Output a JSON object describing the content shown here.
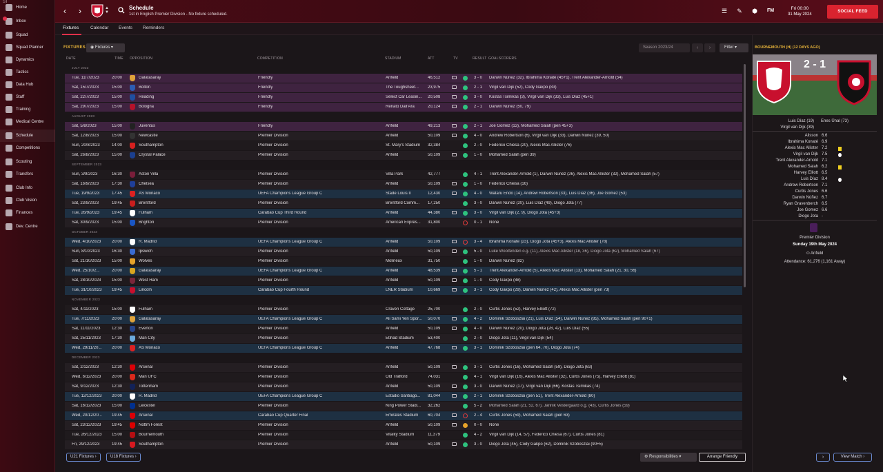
{
  "app": {
    "logo_text": "FM"
  },
  "sidebar": {
    "items": [
      {
        "label": "Home",
        "icon": "home-icon"
      },
      {
        "label": "Inbox",
        "icon": "inbox-icon"
      },
      {
        "label": "Squad",
        "icon": "squad-icon"
      },
      {
        "label": "Squad Planner",
        "icon": "planner-icon"
      },
      {
        "label": "Dynamics",
        "icon": "dynamics-icon"
      },
      {
        "label": "Tactics",
        "icon": "tactics-icon"
      },
      {
        "label": "Data Hub",
        "icon": "datahub-icon"
      },
      {
        "label": "Staff",
        "icon": "staff-icon"
      },
      {
        "label": "Training",
        "icon": "training-icon"
      },
      {
        "label": "Medical Centre",
        "icon": "medical-icon"
      },
      {
        "label": "Schedule",
        "icon": "schedule-icon"
      },
      {
        "label": "Competitions",
        "icon": "trophy-icon"
      },
      {
        "label": "Scouting",
        "icon": "scouting-icon"
      },
      {
        "label": "Transfers",
        "icon": "transfers-icon"
      },
      {
        "label": "Club Info",
        "icon": "clubinfo-icon"
      },
      {
        "label": "Club Vision",
        "icon": "vision-icon"
      },
      {
        "label": "Finances",
        "icon": "finances-icon"
      },
      {
        "label": "Dev. Centre",
        "icon": "devcentre-icon"
      }
    ]
  },
  "header": {
    "title": "Schedule",
    "subtitle": "1st in English Premier Division - No fixture scheduled.",
    "time": "Fri 00:00",
    "date": "31 May 2024",
    "social_feed": "SOCIAL FEED",
    "fm_label": "FM"
  },
  "tabs": [
    "Fixtures",
    "Calendar",
    "Events",
    "Reminders"
  ],
  "fixtures": {
    "label": "FIXTURES",
    "dropdown": "Fixtures",
    "season": "Season 2023/24",
    "filter": "Filter",
    "columns": {
      "date": "DATE",
      "time": "TIME",
      "opposition": "OPPOSITION",
      "competition": "COMPETITION",
      "stadium": "STADIUM",
      "att": "ATT",
      "tv": "TV",
      "result": "RESULT",
      "goalscorers": "GOALSCORERS"
    },
    "sections": [
      "JULY 2023",
      "AUGUST 2023",
      "SEPTEMBER 2023",
      "OCTOBER 2023",
      "NOVEMBER 2023",
      "DECEMBER 2023"
    ],
    "rows": [
      {
        "date": "Tue, 11/7/2023",
        "time": "20:00",
        "opp": "Galatasaray",
        "comp": "Friendly",
        "stadium": "Anfield",
        "att": "46,512",
        "res": "3 - 0",
        "goals": "Darwin Núñez (32), Ibrahima Konaté (45+1), Trent Alexander-Arnold (54)"
      },
      {
        "date": "Sat, 15/7/2023",
        "time": "15:00",
        "opp": "Bolton",
        "comp": "Friendly",
        "stadium": "The Toughsheet...",
        "att": "23,975",
        "res": "2 - 1",
        "goals": "Virgil van Dijk (52), Cody Gakpo (83)"
      },
      {
        "date": "Sat, 22/7/2023",
        "time": "15:00",
        "opp": "Reading",
        "comp": "Friendly",
        "stadium": "Select Car Leasin...",
        "att": "20,508",
        "res": "3 - 0",
        "goals": "Kostas Tsimikas (3), Virgil van Dijk (33), Luis Díaz (45+1)"
      },
      {
        "date": "Sat, 29/7/2023",
        "time": "15:00",
        "opp": "Bologna",
        "comp": "Friendly",
        "stadium": "Renato Dall'Ara",
        "att": "20,124",
        "res": "2 - 1",
        "goals": "Darwin Núñez (50, 79)"
      },
      {
        "date": "Sat, 5/8/2023",
        "time": "15:00",
        "opp": "Juventus",
        "comp": "Friendly",
        "stadium": "Anfield",
        "att": "49,213",
        "res": "2 - 1",
        "goals": "Joe Gomez (13), Mohamed Salah (pen 45+3)"
      },
      {
        "date": "Sat, 12/8/2023",
        "time": "15:00",
        "opp": "Newcastle",
        "comp": "Premier Division",
        "stadium": "Anfield",
        "att": "50,109",
        "res": "4 - 0",
        "goals": "Andrew Robertson (6), Virgil van Dijk (33), Darwin Núñez (39, 50)"
      },
      {
        "date": "Sun, 20/8/2023",
        "time": "14:00",
        "opp": "Southampton",
        "comp": "Premier Division",
        "stadium": "St. Mary's Stadium",
        "att": "32,384",
        "res": "2 - 0",
        "goals": "Federico Chiesa (20), Alexis Mac Allister (76)"
      },
      {
        "date": "Sat, 26/8/2023",
        "time": "15:00",
        "opp": "Crystal Palace",
        "comp": "Premier Division",
        "stadium": "Anfield",
        "att": "50,109",
        "res": "1 - 0",
        "goals": "Mohamed Salah (pen 39)"
      },
      {
        "date": "Sun, 3/9/2023",
        "time": "16:30",
        "opp": "Aston Villa",
        "comp": "Premier Division",
        "stadium": "Villa Park",
        "att": "42,777",
        "res": "4 - 1",
        "goals": "Trent Alexander-Arnold (1), Darwin Núñez (26), Alexis Mac Allister (32), Mohamed Salah (57)"
      },
      {
        "date": "Sat, 16/9/2023",
        "time": "17:30",
        "opp": "Chelsea",
        "comp": "Premier Division",
        "stadium": "Anfield",
        "att": "50,109",
        "res": "1 - 0",
        "goals": "Federico Chiesa (16)"
      },
      {
        "date": "Tue, 19/9/2023",
        "time": "17:45",
        "opp": "AS Monaco",
        "comp": "UEFA Champions League Group C",
        "stadium": "Stade Louis II",
        "att": "12,430",
        "res": "4 - 0",
        "goals": "Wataru Endo (14), Andrew Robertson (33), Luis Díaz (36), Joe Gomez (53)"
      },
      {
        "date": "Sat, 23/9/2023",
        "time": "19:45",
        "opp": "Brentford",
        "comp": "Premier Division",
        "stadium": "Brentford Comm...",
        "att": "17,250",
        "res": "3 - 0",
        "goals": "Darwin Núñez (20), Luis Díaz (49), Diogo Jota (77)"
      },
      {
        "date": "Tue, 26/9/2023",
        "time": "19:45",
        "opp": "Fulham",
        "comp": "Carabao Cup Third Round",
        "stadium": "Anfield",
        "att": "44,380",
        "res": "3 - 0",
        "goals": "Virgil van Dijk (2, 9), Diogo Jota (45+3)"
      },
      {
        "date": "Sat, 30/9/2023",
        "time": "15:00",
        "opp": "Brighton",
        "comp": "Premier Division",
        "stadium": "American Expres...",
        "att": "31,800",
        "res": "0 - 1",
        "goals": "None"
      },
      {
        "date": "Wed, 4/10/2023",
        "time": "20:00",
        "opp": "R. Madrid",
        "comp": "UEFA Champions League Group C",
        "stadium": "Anfield",
        "att": "50,109",
        "res": "3 - 4",
        "goals": "Ibrahima Konaté (23), Diogo Jota (45+3), Alexis Mac Allister (78)"
      },
      {
        "date": "Sun, 8/10/2023",
        "time": "16:30",
        "opp": "Ipswich",
        "comp": "Premier Division",
        "stadium": "Anfield",
        "att": "50,109",
        "res": "5 - 0",
        "goals": "Luke Woolfenden o.g. (11), Alexis Mac Allister (18, 36), Diogo Jota (62), Mohamed Salah (67)"
      },
      {
        "date": "Sat, 21/10/2023",
        "time": "15:00",
        "opp": "Wolves",
        "comp": "Premier Division",
        "stadium": "Molineux",
        "att": "31,750",
        "res": "1 - 0",
        "goals": "Darwin Núñez (82)"
      },
      {
        "date": "Wed, 25/10/2...",
        "time": "20:00",
        "opp": "Galatasaray",
        "comp": "UEFA Champions League Group C",
        "stadium": "Anfield",
        "att": "48,539",
        "res": "5 - 1",
        "goals": "Trent Alexander-Arnold (5), Alexis Mac Allister (13), Mohamed Salah (21, 30, 56)"
      },
      {
        "date": "Sat, 28/10/2023",
        "time": "15:00",
        "opp": "West Ham",
        "comp": "Premier Division",
        "stadium": "Anfield",
        "att": "50,109",
        "res": "1 - 0",
        "goals": "Cody Gakpo (88)"
      },
      {
        "date": "Tue, 31/10/2023",
        "time": "19:45",
        "opp": "Lincoln",
        "comp": "Carabao Cup Fourth Round",
        "stadium": "LNER Stadium",
        "att": "10,669",
        "res": "3 - 1",
        "goals": "Cody Gakpo (29), Darwin Núñez (42), Alexis Mac Allister (pen 73)"
      },
      {
        "date": "Sat, 4/11/2023",
        "time": "15:00",
        "opp": "Fulham",
        "comp": "Premier Division",
        "stadium": "Craven Cottage",
        "att": "25,700",
        "res": "2 - 0",
        "goals": "Curtis Jones (52), Harvey Elliott (72)"
      },
      {
        "date": "Tue, 7/11/2023",
        "time": "20:00",
        "opp": "Galatasaray",
        "comp": "UEFA Champions League Group C",
        "stadium": "Ali Sami Yen Spor...",
        "att": "50,070",
        "res": "4 - 2",
        "goals": "Dominik Szoboszlai (21), Luis Díaz (54), Darwin Núñez (85), Mohamed Salah (pen 90+1)"
      },
      {
        "date": "Sat, 11/11/2023",
        "time": "12:30",
        "opp": "Everton",
        "comp": "Premier Division",
        "stadium": "Anfield",
        "att": "50,109",
        "res": "4 - 0",
        "goals": "Darwin Núñez (20), Diogo Jota (28, 42), Luis Díaz (55)"
      },
      {
        "date": "Sat, 25/11/2023",
        "time": "17:30",
        "opp": "Man City",
        "comp": "Premier Division",
        "stadium": "Etihad Stadium",
        "att": "53,400",
        "res": "2 - 0",
        "goals": "Diogo Jota (11), Virgil van Dijk (54)"
      },
      {
        "date": "Wed, 29/11/20...",
        "time": "20:00",
        "opp": "AS Monaco",
        "comp": "UEFA Champions League Group C",
        "stadium": "Anfield",
        "att": "47,768",
        "res": "3 - 1",
        "goals": "Dominik Szoboszlai (pen 64, 70), Diogo Jota (74)"
      },
      {
        "date": "Sat, 2/12/2023",
        "time": "12:30",
        "opp": "Arsenal",
        "comp": "Premier Division",
        "stadium": "Anfield",
        "att": "50,109",
        "res": "3 - 1",
        "goals": "Curtis Jones (16), Mohamed Salah (59), Diogo Jota (63)"
      },
      {
        "date": "Wed, 6/12/2023",
        "time": "20:00",
        "opp": "Man UFC",
        "comp": "Premier Division",
        "stadium": "Old Trafford",
        "att": "74,031",
        "res": "4 - 1",
        "goals": "Virgil van Dijk (16), Alexis Mac Allister (32), Curtis Jones (75), Harvey Elliott (81)"
      },
      {
        "date": "Sat, 9/12/2023",
        "time": "12:30",
        "opp": "Tottenham",
        "comp": "Premier Division",
        "stadium": "Anfield",
        "att": "50,109",
        "res": "3 - 0",
        "goals": "Darwin Núñez (17), Virgil van Dijk (66), Kostas Tsimikas (74)"
      },
      {
        "date": "Tue, 12/12/2023",
        "time": "20:00",
        "opp": "R. Madrid",
        "comp": "UEFA Champions League Group C",
        "stadium": "Estadio Santiago...",
        "att": "81,044",
        "res": "2 - 1",
        "goals": "Dominik Szoboszlai (pen 51), Trent Alexander-Arnold (80)"
      },
      {
        "date": "Sat, 16/12/2023",
        "time": "15:00",
        "opp": "Leicester",
        "comp": "Premier Division",
        "stadium": "King Power Stadi...",
        "att": "32,262",
        "res": "5 - 2",
        "goals": "Mohamed Salah (21, 52, 67), Jannik Vestergaard o.g. (43), Curtis Jones (59)"
      },
      {
        "date": "Wed, 20/12/20...",
        "time": "19:45",
        "opp": "Arsenal",
        "comp": "Carabao Cup Quarter Final",
        "stadium": "Emirates Stadium",
        "att": "60,704",
        "res": "2 - 4",
        "goals": "Curtis Jones (59), Mohamed Salah (pen 63)"
      },
      {
        "date": "Sat, 23/12/2023",
        "time": "19:45",
        "opp": "Nottm Forest",
        "comp": "Premier Division",
        "stadium": "Anfield",
        "att": "50,109",
        "res": "0 - 0",
        "goals": "None"
      },
      {
        "date": "Tue, 26/12/2023",
        "time": "15:00",
        "opp": "Bournemouth",
        "comp": "Premier Division",
        "stadium": "Vitality Stadium",
        "att": "11,379",
        "res": "4 - 2",
        "goals": "Virgil van Dijk (14, 57), Federico Chiesa (67), Curtis Jones (81)"
      },
      {
        "date": "Fri, 29/12/2023",
        "time": "19:45",
        "opp": "Southampton",
        "comp": "Premier Division",
        "stadium": "Anfield",
        "att": "50,109",
        "res": "3 - 0",
        "goals": "Diogo Jota (45), Cody Gakpo (62), Dominik Szoboszlai (90+5)"
      }
    ],
    "u21": "U21 Fixtures",
    "u18": "U18 Fixtures",
    "responsibilities": "Responsibilities",
    "arrange": "Arrange Friendly"
  },
  "panel": {
    "title": "BOURNEMOUTH (H) (12 DAYS AGO)",
    "score": "2 - 1",
    "scorers_home": [
      "Luis Díaz (19)",
      "Virgil van Dijk (39)"
    ],
    "scorers_away": [
      "Enes Ünal (73)"
    ],
    "ratings": [
      {
        "name": "Alisson",
        "val": "6.6"
      },
      {
        "name": "Ibrahima Konaté",
        "val": "6.9"
      },
      {
        "name": "Alexis Mac Allister",
        "val": "7.2"
      },
      {
        "name": "Virgil van Dijk",
        "val": "7.5"
      },
      {
        "name": "Trent Alexander-Arnold",
        "val": "7.1"
      },
      {
        "name": "Mohamed Salah",
        "val": "6.2"
      },
      {
        "name": "Harvey Elliott",
        "val": "6.5"
      },
      {
        "name": "Luis Díaz",
        "val": "8.4"
      },
      {
        "name": "Andrew Robertson",
        "val": "7.1"
      },
      {
        "name": "Curtis Jones",
        "val": "6.6"
      },
      {
        "name": "Darwin Núñez",
        "val": "6.7"
      },
      {
        "name": "Ryan Gravenberch",
        "val": "6.5"
      },
      {
        "name": "Joe Gomez",
        "val": "6.6"
      },
      {
        "name": "Diogo Jota",
        "val": "-"
      }
    ],
    "competition": "Premier Division",
    "day": "Sunday 19th May 2024",
    "stadium": "Anfield",
    "attendance": "Attendance: 61,276 (1,161 Away)",
    "view_match": "View Match"
  }
}
